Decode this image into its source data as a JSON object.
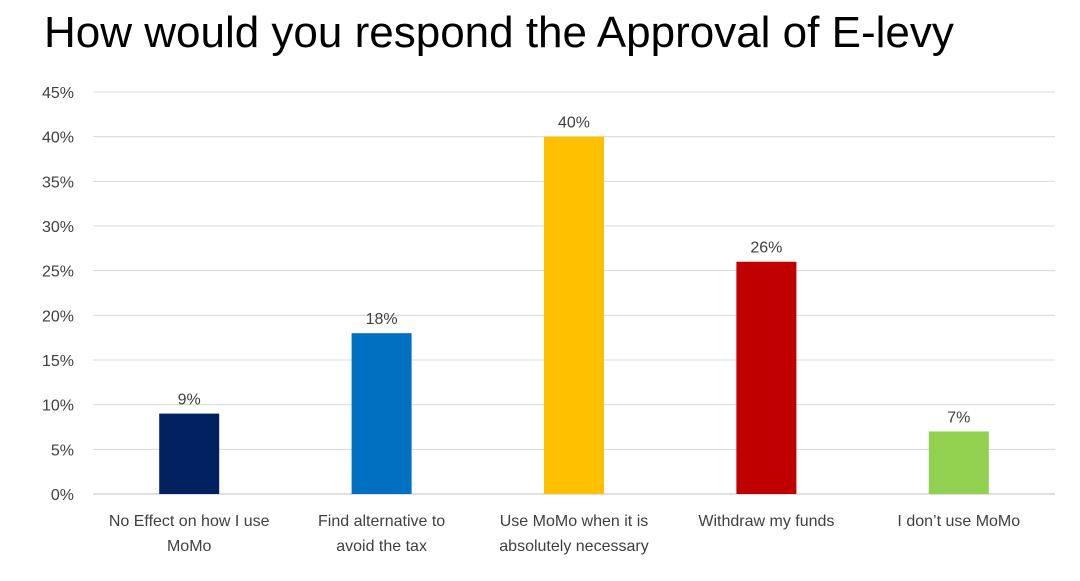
{
  "chart_data": {
    "type": "bar",
    "title": "How would you respond the Approval of E-levy",
    "xlabel": "",
    "ylabel": "",
    "categories": [
      [
        "No Effect on how I use",
        "MoMo"
      ],
      [
        "Find alternative to",
        "avoid the tax"
      ],
      [
        "Use MoMo when it is",
        "absolutely necessary"
      ],
      [
        "Withdraw my funds"
      ],
      [
        "I don’t use MoMo"
      ]
    ],
    "values": [
      9,
      18,
      40,
      26,
      7
    ],
    "data_labels": [
      "9%",
      "18%",
      "40%",
      "26%",
      "7%"
    ],
    "colors": [
      "#002060",
      "#0070C0",
      "#FFC000",
      "#C00000",
      "#92D050"
    ],
    "ylim": [
      0,
      45
    ],
    "yticks": [
      0,
      5,
      10,
      15,
      20,
      25,
      30,
      35,
      40,
      45
    ],
    "ytick_labels": [
      "0%",
      "5%",
      "10%",
      "15%",
      "20%",
      "25%",
      "30%",
      "35%",
      "40%",
      "45%"
    ],
    "grid": true,
    "legend": "none"
  }
}
